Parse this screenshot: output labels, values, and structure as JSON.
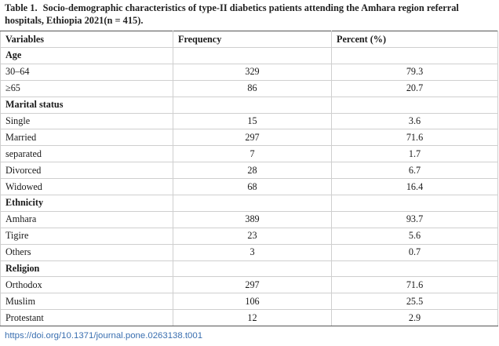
{
  "caption": {
    "label": "Table 1.",
    "text": "Socio-demographic characteristics of type-II diabetics patients attending the Amhara region referral hospitals, Ethiopia 2021(n = 415)."
  },
  "columns": [
    "Variables",
    "Frequency",
    "Percent (%)"
  ],
  "rows": [
    {
      "type": "section",
      "label": "Age"
    },
    {
      "type": "data",
      "label": "30–64",
      "frequency": "329",
      "percent": "79.3"
    },
    {
      "type": "data",
      "label": "≥65",
      "frequency": "86",
      "percent": "20.7"
    },
    {
      "type": "section",
      "label": "Marital status"
    },
    {
      "type": "data",
      "label": "Single",
      "frequency": "15",
      "percent": "3.6"
    },
    {
      "type": "data",
      "label": "Married",
      "frequency": "297",
      "percent": "71.6"
    },
    {
      "type": "data",
      "label": "separated",
      "frequency": "7",
      "percent": "1.7"
    },
    {
      "type": "data",
      "label": "Divorced",
      "frequency": "28",
      "percent": "6.7"
    },
    {
      "type": "data",
      "label": "Widowed",
      "frequency": "68",
      "percent": "16.4"
    },
    {
      "type": "section",
      "label": "Ethnicity"
    },
    {
      "type": "data",
      "label": "Amhara",
      "frequency": "389",
      "percent": "93.7"
    },
    {
      "type": "data",
      "label": "Tigire",
      "frequency": "23",
      "percent": "5.6"
    },
    {
      "type": "data",
      "label": "Others",
      "frequency": "3",
      "percent": "0.7"
    },
    {
      "type": "section",
      "label": "Religion"
    },
    {
      "type": "data",
      "label": "Orthodox",
      "frequency": "297",
      "percent": "71.6"
    },
    {
      "type": "data",
      "label": "Muslim",
      "frequency": "106",
      "percent": "25.5"
    },
    {
      "type": "data",
      "label": "Protestant",
      "frequency": "12",
      "percent": "2.9"
    }
  ],
  "footer": {
    "doi": "https://doi.org/10.1371/journal.pone.0263138.t001"
  }
}
